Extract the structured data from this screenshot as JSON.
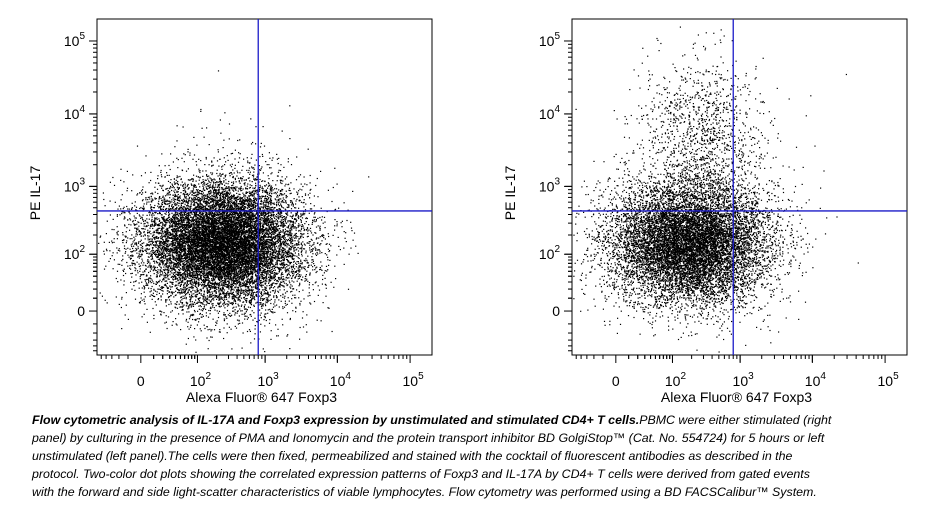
{
  "chart_data": [
    {
      "type": "scatter",
      "panel": "left",
      "xlabel": "Alexa Fluor® 647 Foxp3",
      "ylabel": "PE IL-17",
      "x_ticks": [
        "0",
        "10^2",
        "10^3",
        "10^4",
        "10^5"
      ],
      "y_ticks": [
        "0",
        "10^2",
        "10^3",
        "10^4",
        "10^5"
      ],
      "axis_scale": "biexponential",
      "quadrant_gate": {
        "x": 800,
        "y": 450
      },
      "populations": [
        {
          "x_center": 250,
          "y_center": 150,
          "fraction": 0.99
        },
        {
          "x_center": 300,
          "y_center": 800,
          "fraction": 0.01
        }
      ]
    },
    {
      "type": "scatter",
      "panel": "right",
      "xlabel": "Alexa Fluor® 647 Foxp3",
      "ylabel": "PE IL-17",
      "x_ticks": [
        "0",
        "10^2",
        "10^3",
        "10^4",
        "10^5"
      ],
      "y_ticks": [
        "0",
        "10^2",
        "10^3",
        "10^4",
        "10^5"
      ],
      "axis_scale": "biexponential",
      "quadrant_gate": {
        "x": 800,
        "y": 450
      },
      "populations": [
        {
          "x_center": 180,
          "y_center": 150,
          "fraction": 0.9
        },
        {
          "x_center": 300,
          "y_center": 5000,
          "fraction": 0.1
        }
      ]
    }
  ],
  "caption": {
    "bold": "Flow cytometric analysis of IL-17A and Foxp3 expression by unstimulated and stimulated CD4+ T cells.",
    "text": "PBMC were either stimulated (right panel) by culturing in the presence of PMA and Ionomycin and the protein transport inhibitor BD GolgiStop™ (Cat. No. 554724) for 5 hours or left unstimulated (left panel).The cells were then fixed, permeabilized and stained with the cocktail of fluorescent antibodies as described in the protocol. Two-color dot plots showing the correlated expression patterns of Foxp3 and IL-17A by CD4+ T cells were derived from gated events with the forward and side light-scatter characteristics of viable lymphocytes. Flow cytometry was performed using a BD FACSCalibur™ System."
  },
  "colors": {
    "gate": "#1a1ac8",
    "dots": "#000000"
  }
}
